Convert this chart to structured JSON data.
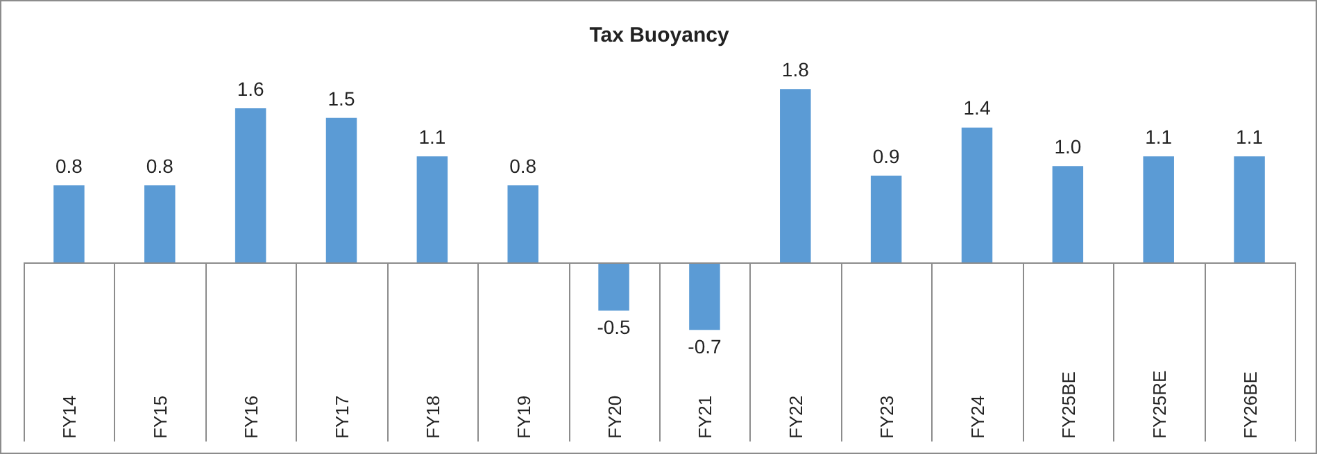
{
  "chart_data": {
    "type": "bar",
    "title": "Tax Buoyancy",
    "categories": [
      "FY14",
      "FY15",
      "FY16",
      "FY17",
      "FY18",
      "FY19",
      "FY20",
      "FY21",
      "FY22",
      "FY23",
      "FY24",
      "FY25BE",
      "FY25RE",
      "FY26BE"
    ],
    "values": [
      0.8,
      0.8,
      1.6,
      1.5,
      1.1,
      0.8,
      -0.5,
      -0.7,
      1.8,
      0.9,
      1.4,
      1.0,
      1.1,
      1.1
    ],
    "value_labels": [
      "0.8",
      "0.8",
      "1.6",
      "1.5",
      "1.1",
      "0.8",
      "-0.5",
      "-0.7",
      "1.8",
      "0.9",
      "1.4",
      "1.0",
      "1.1",
      "1.1"
    ],
    "color": "#5b9bd5"
  }
}
